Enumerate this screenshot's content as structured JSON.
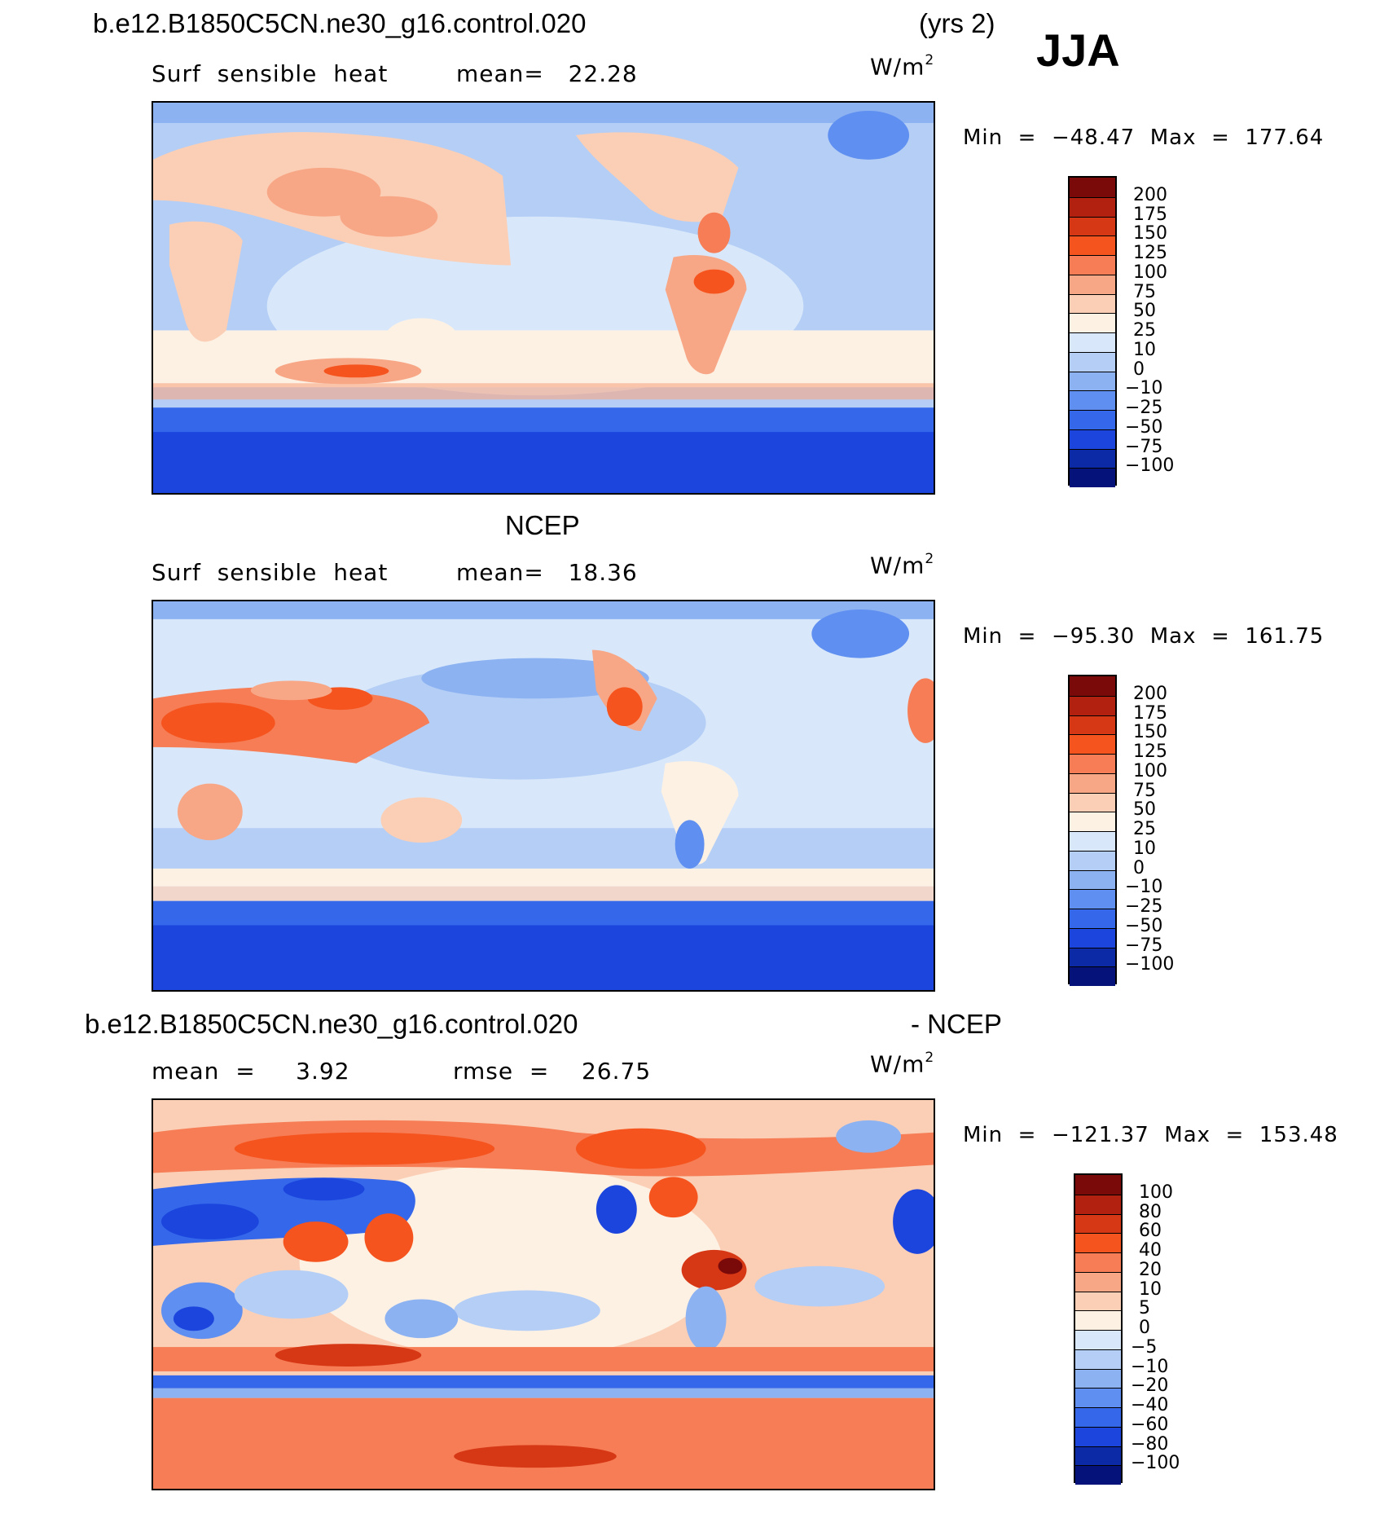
{
  "header": {
    "case_name": "b.e12.B1850C5CN.ne30_g16.control.020",
    "years": "(yrs 2)",
    "season": "JJA"
  },
  "panels": [
    {
      "id": "model",
      "title": "",
      "variable": "Surf  sensible  heat",
      "stat": "mean=   22.28",
      "units": "W/m",
      "units_sup": "2",
      "minmax": "Min  =  −48.47  Max  =  177.64",
      "colorbar": {
        "labels": [
          "200",
          "175",
          "150",
          "125",
          "100",
          "75",
          "50",
          "25",
          "10",
          "0",
          "−10",
          "−25",
          "−50",
          "−75",
          "−100"
        ],
        "colors": [
          "#7a0a0a",
          "#b2200f",
          "#d63714",
          "#f5541e",
          "#f67d55",
          "#f8a786",
          "#fbcfb6",
          "#fdf1e4",
          "#d8e8fa",
          "#b4cef6",
          "#8cb2f2",
          "#5f8ff0",
          "#3467ea",
          "#1b45dd",
          "#0d2aa6",
          "#04127a"
        ]
      }
    },
    {
      "id": "obs",
      "title": "NCEP",
      "variable": "Surf  sensible  heat",
      "stat": "mean=   18.36",
      "units": "W/m",
      "units_sup": "2",
      "minmax": "Min  =  −95.30  Max  =  161.75",
      "colorbar": {
        "labels": [
          "200",
          "175",
          "150",
          "125",
          "100",
          "75",
          "50",
          "25",
          "10",
          "0",
          "−10",
          "−25",
          "−50",
          "−75",
          "−100"
        ],
        "colors": [
          "#7a0a0a",
          "#b2200f",
          "#d63714",
          "#f5541e",
          "#f67d55",
          "#f8a786",
          "#fbcfb6",
          "#fdf1e4",
          "#d8e8fa",
          "#b4cef6",
          "#8cb2f2",
          "#5f8ff0",
          "#3467ea",
          "#1b45dd",
          "#0d2aa6",
          "#04127a"
        ]
      }
    },
    {
      "id": "diff",
      "title_left": "b.e12.B1850C5CN.ne30_g16.control.020",
      "title_right": "- NCEP",
      "stat_left": "mean  =     3.92",
      "stat_right": "rmse  =    26.75",
      "units": "W/m",
      "units_sup": "2",
      "minmax": "Min  =  −121.37  Max  =  153.48",
      "colorbar": {
        "labels": [
          "100",
          "80",
          "60",
          "40",
          "20",
          "10",
          "5",
          "0",
          "−5",
          "−10",
          "−20",
          "−40",
          "−60",
          "−80",
          "−100"
        ],
        "colors": [
          "#7a0a0a",
          "#b2200f",
          "#d63714",
          "#f5541e",
          "#f67d55",
          "#f8a786",
          "#fbcfb6",
          "#fdf1e4",
          "#d8e8fa",
          "#b4cef6",
          "#8cb2f2",
          "#5f8ff0",
          "#3467ea",
          "#1b45dd",
          "#0d2aa6",
          "#04127a"
        ]
      }
    }
  ]
}
